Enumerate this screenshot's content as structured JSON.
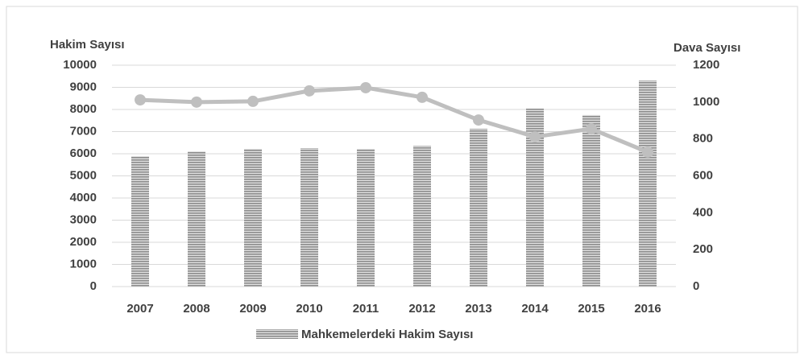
{
  "chart_data": {
    "type": "bar-line",
    "y_label": "Hakim Sayısı",
    "y2_label": "Dava Sayısı",
    "categories": [
      "2007",
      "2008",
      "2009",
      "2010",
      "2011",
      "2012",
      "2013",
      "2014",
      "2015",
      "2016"
    ],
    "series": [
      {
        "name": "Mahkemelerdeki Hakim Sayısı",
        "type": "bar",
        "color": "#8c8c8c",
        "values": [
          5890,
          6110,
          6220,
          6250,
          6220,
          6360,
          7130,
          8040,
          7750,
          9310
        ]
      },
      {
        "type": "line",
        "axis": "y2",
        "color": "#bfbfbf",
        "values": [
          1012,
          1000,
          1004,
          1061,
          1078,
          1026,
          903,
          812,
          855,
          729
        ]
      }
    ],
    "ylim": [
      0,
      10000
    ],
    "yticks": [
      0,
      1000,
      2000,
      3000,
      4000,
      5000,
      6000,
      7000,
      8000,
      9000,
      10000
    ],
    "y2lim": [
      0,
      1200
    ],
    "y2ticks": [
      0,
      200,
      400,
      600,
      800,
      1000,
      1200
    ],
    "grid": true,
    "legend": "bottom"
  }
}
